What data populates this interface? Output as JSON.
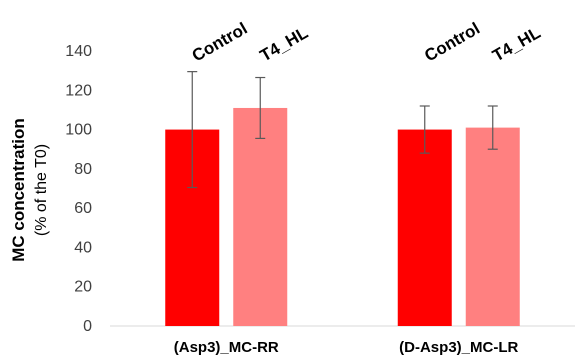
{
  "chart_data": {
    "type": "bar",
    "title": "",
    "xlabel": "",
    "ylabel": "MC concentration",
    "ylabel_sub": "(% of the T0)",
    "ylim": [
      0,
      140
    ],
    "yticks": [
      0,
      20,
      40,
      60,
      80,
      100,
      120,
      140
    ],
    "grid": false,
    "categories": [
      "(Asp3)_MC-RR",
      "(D-Asp3)_MC-LR"
    ],
    "series": [
      {
        "name": "Control",
        "color": "#ff0000",
        "values": [
          100,
          100
        ],
        "errors": [
          29.5,
          12
        ]
      },
      {
        "name": "T4_HL",
        "color": "#ff8080",
        "values": [
          111,
          101
        ],
        "errors": [
          15.5,
          11
        ]
      }
    ]
  }
}
